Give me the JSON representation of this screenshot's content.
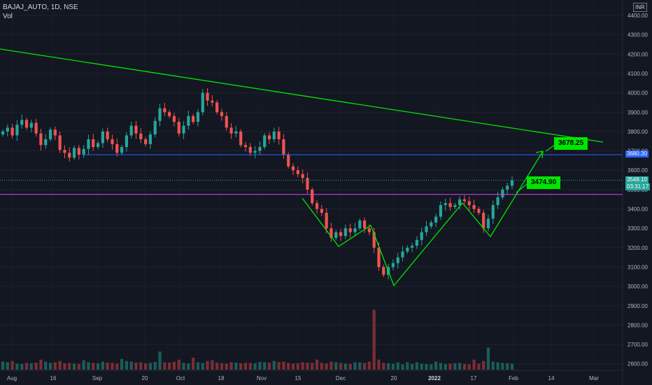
{
  "header": {
    "symbol_line": "BAJAJ_AUTO, 1D, NSE",
    "volume_label": "Vol"
  },
  "currency_badge": "INR",
  "annotations": {
    "target_price": "3678.25",
    "neckline_price": "3474.90"
  },
  "axis_tags": {
    "resistance": "3680.30",
    "last_price": "3548.10",
    "countdown": "03:31:17"
  },
  "colors": {
    "background": "#131722",
    "up_candle": "#26a69a",
    "down_candle": "#ef5350",
    "up_volume": "#1a5e58",
    "down_volume": "#7a2e34",
    "pattern_lines": "#00e600",
    "resistance_line": "#2962ff",
    "neckline": "#e040fb",
    "last_price_line": "#26a69a"
  },
  "chart_data": {
    "type": "candlestick",
    "title": "BAJAJ_AUTO, 1D, NSE",
    "y_axis": {
      "ticks": [
        4400,
        4300,
        4200,
        4100,
        4000,
        3900,
        3800,
        3700,
        3600,
        3500,
        3400,
        3300,
        3200,
        3100,
        3000,
        2900,
        2800,
        2700,
        2600
      ],
      "tick_labels": [
        "4400.00",
        "4300.00",
        "4200.00",
        "4100.00",
        "4000.00",
        "3900.00",
        "3800.00",
        "3700.00",
        "3600.00",
        "3500.00",
        "3400.00",
        "3300.00",
        "3200.00",
        "3100.00",
        "3000.00",
        "2900.00",
        "2800.00",
        "2700.00",
        "2600.00"
      ],
      "range": [
        2570,
        4460
      ]
    },
    "x_axis": {
      "tick_labels": [
        "Aug",
        "16",
        "Sep",
        "20",
        "Oct",
        "18",
        "Nov",
        "15",
        "Dec",
        "20",
        "2022",
        "17",
        "Feb",
        "14",
        "Mar"
      ]
    },
    "series": [
      {
        "name": "BAJAJ_AUTO",
        "closes": [
          3800,
          3820,
          3780,
          3835,
          3860,
          3820,
          3845,
          3790,
          3730,
          3760,
          3810,
          3780,
          3705,
          3690,
          3665,
          3715,
          3680,
          3710,
          3760,
          3720,
          3740,
          3800,
          3760,
          3735,
          3690,
          3720,
          3780,
          3830,
          3790,
          3760,
          3735,
          3785,
          3855,
          3920,
          3900,
          3880,
          3850,
          3790,
          3830,
          3880,
          3850,
          3900,
          4000,
          3960,
          3950,
          3900,
          3880,
          3820,
          3790,
          3800,
          3730,
          3720,
          3690,
          3700,
          3720,
          3780,
          3760,
          3800,
          3760,
          3680,
          3620,
          3600,
          3580,
          3560,
          3500,
          3430,
          3400,
          3380,
          3300,
          3250,
          3280,
          3260,
          3300,
          3280,
          3300,
          3340,
          3300,
          3280,
          3200,
          3100,
          3060,
          3100,
          3120,
          3150,
          3180,
          3200,
          3210,
          3240,
          3280,
          3310,
          3330,
          3360,
          3420,
          3430,
          3410,
          3420,
          3450,
          3440,
          3420,
          3400,
          3380,
          3300,
          3350,
          3420,
          3460,
          3500,
          3520,
          3548
        ],
        "volumes": [
          120,
          110,
          130,
          90,
          85,
          100,
          95,
          105,
          150,
          120,
          100,
          110,
          130,
          95,
          100,
          90,
          85,
          140,
          110,
          100,
          95,
          120,
          105,
          100,
          90,
          160,
          130,
          120,
          105,
          110,
          95,
          100,
          115,
          270,
          110,
          105,
          120,
          150,
          100,
          95,
          180,
          110,
          100,
          130,
          140,
          105,
          95,
          90,
          110,
          105,
          95,
          100,
          100,
          95,
          115,
          110,
          105,
          130,
          115,
          120,
          100,
          90,
          95,
          110,
          105,
          100,
          150,
          100,
          95,
          120,
          110,
          100,
          90,
          85,
          110,
          105,
          100,
          120,
          900,
          150,
          100,
          95,
          90,
          110,
          80,
          110,
          85,
          110,
          90,
          85,
          80,
          120,
          100,
          85,
          90,
          95,
          100,
          85,
          80,
          150,
          90,
          130,
          330,
          120,
          110,
          100,
          95,
          90
        ],
        "key_levels": {
          "resistance": 3680.3,
          "neckline": 3474.9,
          "target": 3678.25,
          "last": 3548.1
        }
      }
    ]
  }
}
